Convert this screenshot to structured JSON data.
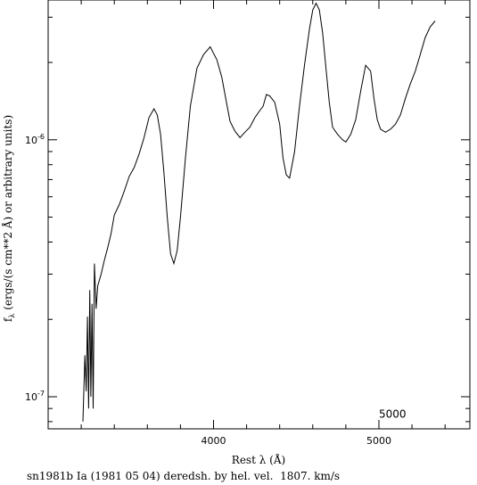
{
  "chart_data": {
    "type": "line",
    "xlabel": "Rest λ (Å)",
    "ylabel": "f_λ (ergs/(s cm**2 Å) or arbitrary units)",
    "ylabel_main": "f",
    "ylabel_sub": "λ",
    "ylabel_rest": " (ergs/(s cm**2 Å) or arbitrary units)",
    "yscale": "log",
    "xlim": [
      3000,
      5550
    ],
    "ylim": [
      7.5e-08,
      3.5e-06
    ],
    "x_ticks": [
      {
        "value": 4000,
        "label": "4000"
      },
      {
        "value": 5000,
        "label": "5000"
      }
    ],
    "y_ticks": [
      {
        "value": 1e-07,
        "base": "10",
        "exp": "-7"
      },
      {
        "value": 1e-06,
        "base": "10",
        "exp": "-6"
      }
    ],
    "annotation": {
      "text": "5000",
      "x": 5000,
      "y": 8.3e-08
    },
    "grid": false,
    "series": [
      {
        "x": [
          3210,
          3222,
          3230,
          3238,
          3245,
          3252,
          3258,
          3265,
          3272,
          3280,
          3290,
          3300,
          3320,
          3340,
          3360,
          3380,
          3400,
          3430,
          3460,
          3490,
          3520,
          3550,
          3580,
          3610,
          3640,
          3660,
          3680,
          3700,
          3720,
          3740,
          3760,
          3780,
          3800,
          3830,
          3860,
          3900,
          3940,
          3980,
          4020,
          4050,
          4080,
          4100,
          4130,
          4160,
          4190,
          4220,
          4250,
          4280,
          4300,
          4320,
          4340,
          4370,
          4400,
          4420,
          4440,
          4460,
          4490,
          4520,
          4550,
          4580,
          4600,
          4620,
          4640,
          4660,
          4680,
          4700,
          4720,
          4750,
          4780,
          4800,
          4830,
          4860,
          4890,
          4920,
          4950,
          4970,
          4990,
          5010,
          5040,
          5070,
          5100,
          5130,
          5160,
          5190,
          5220,
          5250,
          5280,
          5310,
          5340
        ],
        "y": [
          8e-08,
          1.45e-07,
          1.05e-07,
          2.05e-07,
          9e-08,
          2.6e-07,
          1e-07,
          2.3e-07,
          9e-08,
          3.3e-07,
          2.2e-07,
          2.7e-07,
          3e-07,
          3.4e-07,
          3.8e-07,
          4.3e-07,
          5.1e-07,
          5.6e-07,
          6.3e-07,
          7.2e-07,
          7.8e-07,
          8.8e-07,
          1.02e-06,
          1.22e-06,
          1.32e-06,
          1.25e-06,
          1.05e-06,
          7.5e-07,
          5e-07,
          3.6e-07,
          3.3e-07,
          3.7e-07,
          5e-07,
          8.5e-07,
          1.35e-06,
          1.9e-06,
          2.15e-06,
          2.3e-06,
          2.05e-06,
          1.75e-06,
          1.38e-06,
          1.18e-06,
          1.08e-06,
          1.02e-06,
          1.07e-06,
          1.12e-06,
          1.22e-06,
          1.3e-06,
          1.35e-06,
          1.5e-06,
          1.48e-06,
          1.4e-06,
          1.15e-06,
          8.5e-07,
          7.3e-07,
          7.1e-07,
          9e-07,
          1.35e-06,
          1.95e-06,
          2.7e-06,
          3.2e-06,
          3.4e-06,
          3.2e-06,
          2.6e-06,
          1.9e-06,
          1.4e-06,
          1.12e-06,
          1.05e-06,
          1e-06,
          9.8e-07,
          1.05e-06,
          1.2e-06,
          1.55e-06,
          1.95e-06,
          1.85e-06,
          1.45e-06,
          1.2e-06,
          1.1e-06,
          1.07e-06,
          1.1e-06,
          1.15e-06,
          1.25e-06,
          1.45e-06,
          1.65e-06,
          1.85e-06,
          2.15e-06,
          2.5e-06,
          2.75e-06,
          2.9e-06
        ]
      }
    ]
  },
  "caption": "sn1981b Ia (1981 05 04) deredsh. by hel. vel.  1807. km/s"
}
